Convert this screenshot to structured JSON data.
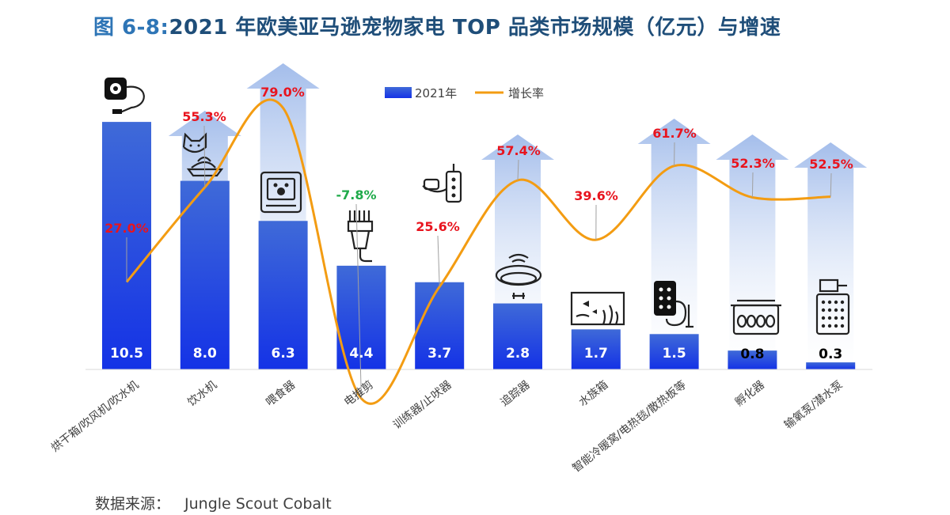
{
  "title": {
    "figure_no": "图 6-8:",
    "text": "2021 年欧美亚马逊宠物家电 TOP 品类市场规模（亿元）与增速"
  },
  "source": {
    "label": "数据来源：",
    "name": "Jungle Scout Cobalt"
  },
  "colors": {
    "bar_top": "#3f6ad8",
    "bar_bottom": "#1432e6",
    "line": "#f39c12",
    "positive": "#e8141e",
    "negative": "#1faa4a",
    "arrow_top": "#9fbaea",
    "arrow_bottom": "#ffffff",
    "title": "#1f4e79"
  },
  "chart_data": {
    "type": "bar",
    "categories": [
      "烘干箱/吹风机/吹水机",
      "饮水机",
      "喂食器",
      "电推剪",
      "训练器/止吠器",
      "追踪器",
      "水族箱",
      "智能冷暖窝/电热毯/散热板等",
      "孵化器",
      "输氧泵/潜水泵"
    ],
    "series": [
      {
        "name": "2021年",
        "type": "bar",
        "values": [
          10.5,
          8.0,
          6.3,
          4.4,
          3.7,
          2.8,
          1.7,
          1.5,
          0.8,
          0.3
        ]
      },
      {
        "name": "增长率",
        "type": "line",
        "values": [
          27.0,
          55.3,
          79.0,
          -7.8,
          25.6,
          57.4,
          39.6,
          61.7,
          52.3,
          52.5
        ]
      }
    ],
    "value_labels": [
      "10.5",
      "8.0",
      "6.3",
      "4.4",
      "3.7",
      "2.8",
      "1.7",
      "1.5",
      "0.8",
      "0.3"
    ],
    "rate_labels": [
      "27.0%",
      "55.3%",
      "79.0%",
      "-7.8%",
      "25.6%",
      "57.4%",
      "39.6%",
      "61.7%",
      "52.3%",
      "52.5%"
    ],
    "legend_position": "top-center",
    "grid": false,
    "icons": [
      "dryer-icon",
      "cat-fountain-icon",
      "feeder-icon",
      "clipper-icon",
      "bark-collar-icon",
      "tracker-collar-icon",
      "aquarium-icon",
      "heating-pad-icon",
      "incubator-icon",
      "air-pump-icon"
    ]
  }
}
